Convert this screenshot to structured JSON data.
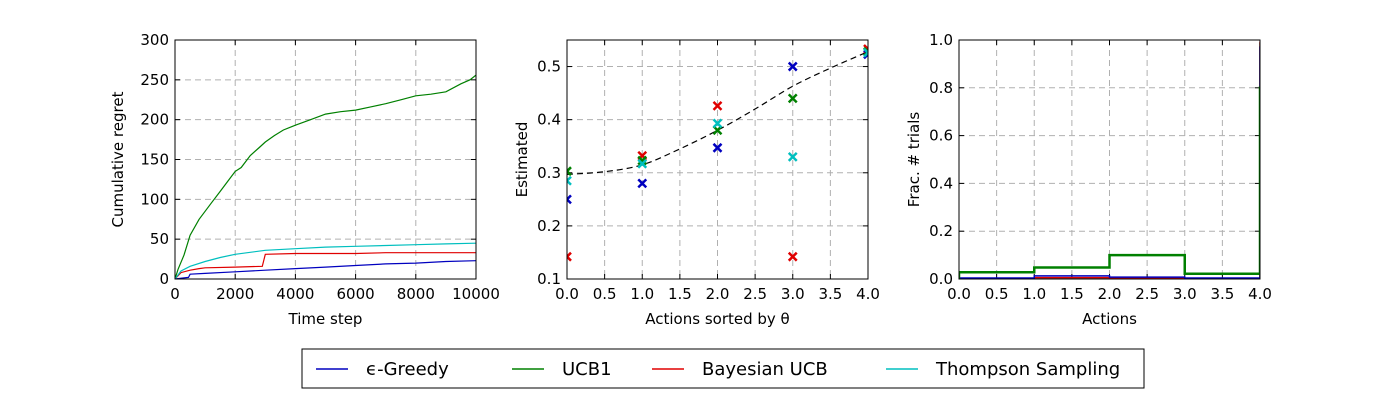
{
  "colors": {
    "egreedy": "#0000bf",
    "ucb1": "#008000",
    "bayes": "#e00000",
    "thompson": "#00bfbf",
    "truth": "#000000"
  },
  "legend": {
    "placement": "bottom-center",
    "entries": [
      {
        "key": "egreedy",
        "label": "ϵ-Greedy"
      },
      {
        "key": "ucb1",
        "label": "UCB1"
      },
      {
        "key": "bayes",
        "label": "Bayesian UCB"
      },
      {
        "key": "thompson",
        "label": "Thompson Sampling"
      }
    ]
  },
  "chart_data": [
    {
      "type": "line",
      "title": "",
      "xlabel": "Time step",
      "ylabel": "Cumulative regret",
      "xlim": [
        0,
        10000
      ],
      "ylim": [
        0,
        300
      ],
      "xticks": [
        0,
        2000,
        4000,
        6000,
        8000,
        10000
      ],
      "yticks": [
        0,
        50,
        100,
        150,
        200,
        250,
        300
      ],
      "grid": true,
      "series": [
        {
          "name": "ϵ-Greedy",
          "key": "egreedy",
          "x": [
            0,
            200,
            450,
            500,
            1000,
            2000,
            3000,
            4000,
            5000,
            6000,
            7000,
            8000,
            9000,
            10000
          ],
          "y": [
            0,
            1,
            2,
            6,
            7,
            9,
            11,
            13,
            15,
            17,
            19,
            20,
            22,
            23
          ]
        },
        {
          "name": "UCB1",
          "key": "ucb1",
          "x": [
            0,
            100,
            300,
            500,
            800,
            1000,
            1200,
            1500,
            1800,
            2000,
            2200,
            2500,
            2800,
            3000,
            3300,
            3600,
            4000,
            4500,
            5000,
            5500,
            6000,
            6500,
            7000,
            7500,
            8000,
            8500,
            9000,
            9500,
            9800,
            10000
          ],
          "y": [
            0,
            12,
            30,
            55,
            75,
            85,
            95,
            110,
            125,
            135,
            140,
            155,
            165,
            172,
            180,
            187,
            193,
            200,
            207,
            210,
            212,
            216,
            220,
            225,
            230,
            232,
            235,
            245,
            250,
            256
          ]
        },
        {
          "name": "Bayesian UCB",
          "key": "bayes",
          "x": [
            0,
            200,
            500,
            800,
            1000,
            2000,
            2900,
            3000,
            4000,
            5000,
            6000,
            7000,
            8000,
            9000,
            10000
          ],
          "y": [
            0,
            8,
            11,
            13,
            14,
            15,
            16,
            31,
            32,
            32,
            32,
            33,
            33,
            33,
            33
          ]
        },
        {
          "name": "Thompson Sampling",
          "key": "thompson",
          "x": [
            0,
            200,
            500,
            1000,
            1500,
            2000,
            3000,
            4000,
            5000,
            6000,
            7000,
            8000,
            9000,
            10000
          ],
          "y": [
            0,
            10,
            16,
            22,
            27,
            31,
            36,
            38,
            40,
            41,
            42,
            43,
            44,
            45
          ]
        }
      ]
    },
    {
      "type": "scatter",
      "title": "",
      "xlabel": "Actions sorted by θ",
      "ylabel": "Estimated",
      "xlim": [
        0,
        4
      ],
      "ylim": [
        0.1,
        0.55
      ],
      "xticks": [
        0.0,
        0.5,
        1.0,
        1.5,
        2.0,
        2.5,
        3.0,
        3.5,
        4.0
      ],
      "yticks": [
        0.1,
        0.2,
        0.3,
        0.4,
        0.5
      ],
      "grid": true,
      "truth": {
        "x": [
          0,
          0.5,
          1,
          1.5,
          2,
          2.5,
          3,
          3.5,
          4
        ],
        "y": [
          0.297,
          0.302,
          0.315,
          0.345,
          0.38,
          0.42,
          0.463,
          0.497,
          0.528
        ]
      },
      "series": [
        {
          "name": "ϵ-Greedy",
          "key": "egreedy",
          "x": [
            0,
            1,
            2,
            3,
            4
          ],
          "y": [
            0.25,
            0.28,
            0.347,
            0.5,
            0.523
          ]
        },
        {
          "name": "UCB1",
          "key": "ucb1",
          "x": [
            0,
            1,
            2,
            3,
            4
          ],
          "y": [
            0.303,
            0.323,
            0.38,
            0.44,
            0.528
          ]
        },
        {
          "name": "Bayesian UCB",
          "key": "bayes",
          "x": [
            0,
            1,
            2,
            3,
            4
          ],
          "y": [
            0.142,
            0.332,
            0.426,
            0.142,
            0.533
          ]
        },
        {
          "name": "Thompson Sampling",
          "key": "thompson",
          "x": [
            0,
            1,
            2,
            3,
            4
          ],
          "y": [
            0.285,
            0.317,
            0.393,
            0.33,
            0.526
          ]
        }
      ]
    },
    {
      "type": "line",
      "title": "",
      "xlabel": "Actions",
      "ylabel": "Frac. # trials",
      "xlim": [
        0,
        4
      ],
      "ylim": [
        0,
        1
      ],
      "xticks": [
        0.0,
        0.5,
        1.0,
        1.5,
        2.0,
        2.5,
        3.0,
        3.5,
        4.0
      ],
      "yticks": [
        0.0,
        0.2,
        0.4,
        0.6,
        0.8,
        1.0
      ],
      "grid": true,
      "step": true,
      "series": [
        {
          "name": "ϵ-Greedy",
          "key": "egreedy",
          "bins": [
            0,
            1,
            2,
            3,
            4
          ],
          "values": [
            0.004,
            0.013,
            0.008,
            0.004,
            0.97
          ]
        },
        {
          "name": "UCB1",
          "key": "ucb1",
          "bins": [
            0,
            1,
            2,
            3,
            4
          ],
          "values": [
            0.028,
            0.048,
            0.1,
            0.022,
            0.8
          ]
        },
        {
          "name": "Bayesian UCB",
          "key": "bayes",
          "bins": [
            0,
            1,
            2,
            3,
            4
          ],
          "values": [
            0.001,
            0.006,
            0.003,
            0.001,
            0.99
          ]
        },
        {
          "name": "Thompson Sampling",
          "key": "thompson",
          "bins": [
            0,
            1,
            2,
            3,
            4
          ],
          "values": [
            0.002,
            0.004,
            0.005,
            0.003,
            0.985
          ]
        }
      ]
    }
  ]
}
